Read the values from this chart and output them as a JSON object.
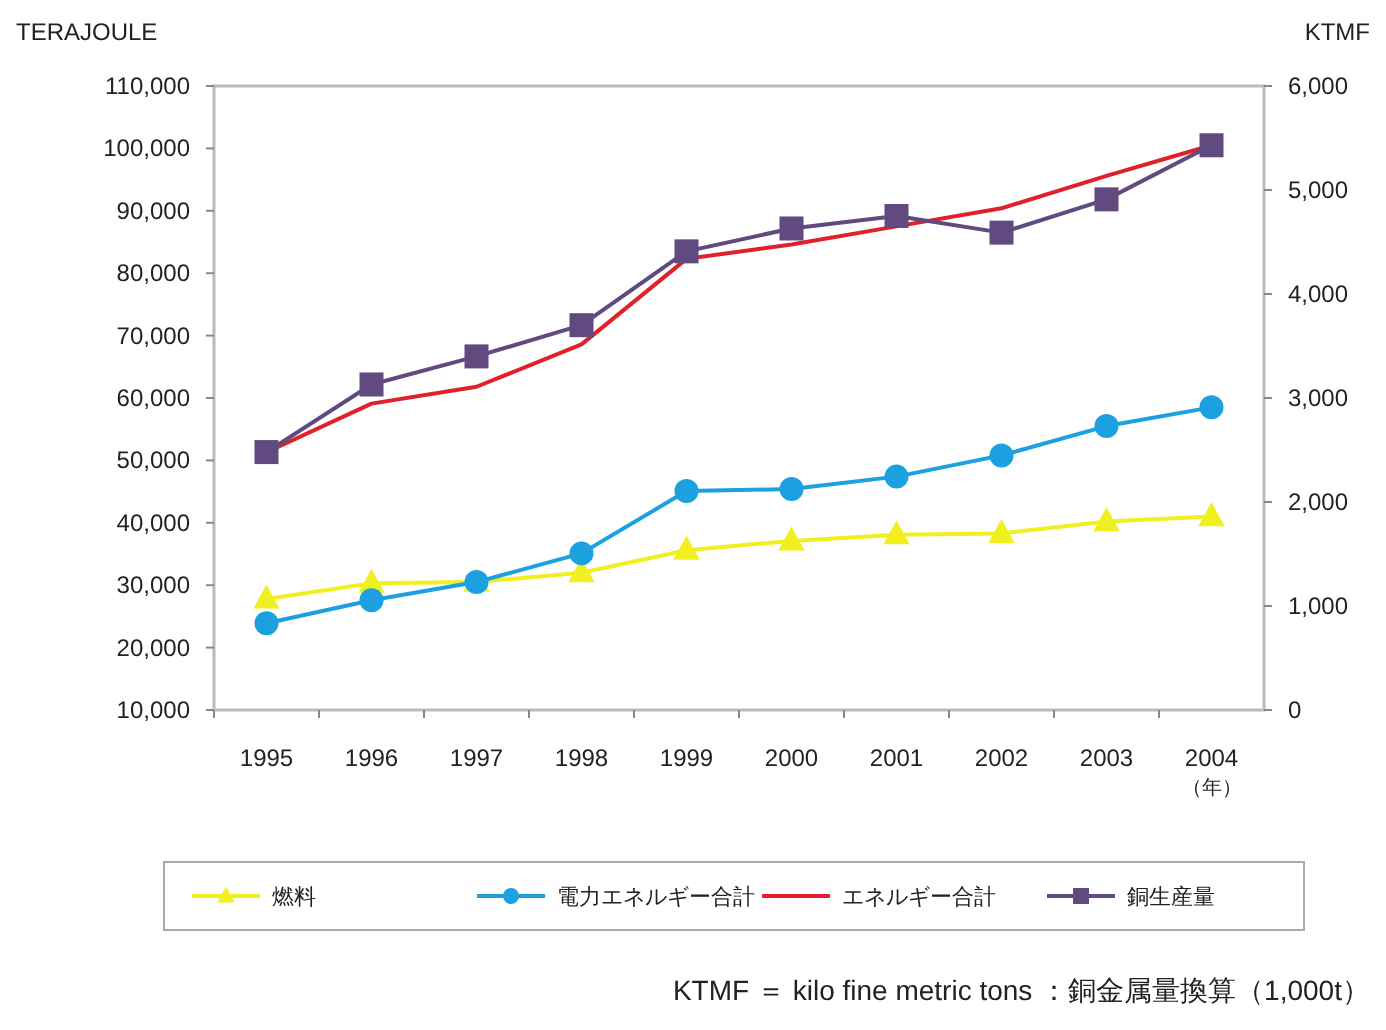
{
  "chart_data": {
    "type": "line",
    "ylabel": "TERAJOULE",
    "y2label": "KTMF",
    "categories": [
      "1995",
      "1996",
      "1997",
      "1998",
      "1999",
      "2000",
      "2001",
      "2002",
      "2003",
      "2004"
    ],
    "ylim": [
      10000,
      110000
    ],
    "yticks": [
      {
        "value": 10000,
        "label": "10,000"
      },
      {
        "value": 20000,
        "label": "20,000"
      },
      {
        "value": 30000,
        "label": "30,000"
      },
      {
        "value": 40000,
        "label": "40,000"
      },
      {
        "value": 50000,
        "label": "50,000"
      },
      {
        "value": 60000,
        "label": "60,000"
      },
      {
        "value": 70000,
        "label": "70,000"
      },
      {
        "value": 80000,
        "label": "80,000"
      },
      {
        "value": 90000,
        "label": "90,000"
      },
      {
        "value": 100000,
        "label": "100,000"
      },
      {
        "value": 110000,
        "label": "110,000"
      }
    ],
    "y2lim": [
      0,
      6000
    ],
    "y2ticks": [
      0,
      {
        "value": 1000,
        "label": "1,000"
      },
      {
        "value": 2000,
        "label": "2,000"
      },
      {
        "value": 3000,
        "label": "3,000"
      },
      {
        "value": 4000,
        "label": "4,000"
      },
      {
        "value": 5000,
        "label": "5,000"
      },
      {
        "value": 6000,
        "label": "6,000"
      }
    ],
    "series": [
      {
        "name": "燃料",
        "color": "#f0f020",
        "marker": "triangle",
        "values": [
          27800,
          30300,
          30500,
          32000,
          35600,
          37100,
          38100,
          38300,
          40200,
          41000
        ]
      },
      {
        "name": "電力エネルギー合計",
        "color": "#1ca0e0",
        "marker": "circle",
        "values": [
          23900,
          27600,
          30500,
          35100,
          45100,
          45400,
          47400,
          50800,
          55500,
          58500
        ]
      },
      {
        "name": "エネルギー合計",
        "color": "#e0202a",
        "marker": "none",
        "values": [
          51300,
          59100,
          61800,
          68600,
          82300,
          84600,
          87500,
          90400,
          95600,
          100500
        ]
      },
      {
        "name": "銅生産量",
        "color": "#604a80",
        "marker": "square",
        "axis": "y2",
        "values": [
          2480,
          3130,
          3400,
          3700,
          4410,
          4630,
          4750,
          4590,
          4910,
          5430
        ]
      }
    ],
    "grid": false,
    "legend": "bottom",
    "annotations": [
      "（年）",
      "KTMF ＝ kilo fine metric tons ：銅金属量換算（1,000t）"
    ]
  }
}
